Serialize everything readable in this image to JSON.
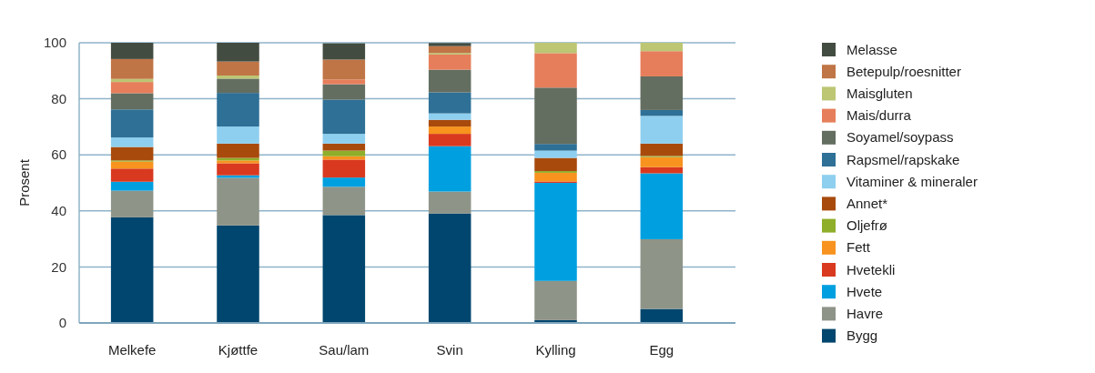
{
  "chart_data": {
    "type": "bar",
    "stacked": true,
    "ylabel": "Prosent",
    "categories": [
      "Melkefe",
      "Kjøttfe",
      "Sau/lam",
      "Svin",
      "Kylling",
      "Egg"
    ],
    "ylim": [
      0,
      100
    ],
    "yticks": [
      0,
      20,
      40,
      60,
      80,
      100
    ],
    "grid": "y",
    "legend": "right",
    "series": [
      {
        "name": "Bygg",
        "color": "#00466e",
        "values": [
          37.7,
          34.8,
          38.5,
          39.1,
          1.0,
          5.0
        ]
      },
      {
        "name": "Havre",
        "color": "#8e9488",
        "values": [
          9.5,
          17.0,
          10.1,
          7.8,
          14.0,
          24.9
        ]
      },
      {
        "name": "Hvete",
        "color": "#00a0e0",
        "values": [
          3.2,
          0.9,
          3.3,
          16.2,
          35.0,
          23.5
        ]
      },
      {
        "name": "Hvetekli",
        "color": "#d9391f",
        "values": [
          4.7,
          4.3,
          6.4,
          4.4,
          0.5,
          2.2
        ]
      },
      {
        "name": "Fett",
        "color": "#f7931e",
        "values": [
          2.5,
          1.0,
          1.2,
          2.6,
          3.1,
          3.6
        ]
      },
      {
        "name": "Oljefrø",
        "color": "#8fae2a",
        "values": [
          0.4,
          0.9,
          2.0,
          null,
          0.6,
          0.4
        ]
      },
      {
        "name": "Annet*",
        "color": "#a84a0c",
        "values": [
          4.8,
          5.1,
          2.5,
          2.4,
          4.7,
          4.4
        ]
      },
      {
        "name": "Vitaminer & mineraler",
        "color": "#8ecfef",
        "values": [
          3.4,
          6.1,
          3.5,
          2.3,
          2.6,
          9.9
        ]
      },
      {
        "name": "Rapsmel/rapskake",
        "color": "#2e7096",
        "values": [
          10.0,
          12.0,
          12.2,
          7.5,
          2.4,
          2.1
        ]
      },
      {
        "name": "Soyamel/soypass",
        "color": "#636e60",
        "values": [
          5.8,
          5.1,
          5.5,
          8.1,
          20.1,
          12.0
        ]
      },
      {
        "name": "Mais/durra",
        "color": "#e67e5b",
        "values": [
          4.0,
          0,
          1.7,
          5.4,
          12.3,
          9.0
        ]
      },
      {
        "name": "Maisgluten",
        "color": "#bcc673",
        "values": [
          1.1,
          1.1,
          null,
          0.5,
          3.7,
          3.0
        ]
      },
      {
        "name": "Betepulp/roesnitter",
        "color": "#c07546",
        "values": [
          7.1,
          5.0,
          7.1,
          2.5,
          0,
          0
        ]
      },
      {
        "name": "Melasse",
        "color": "#434c41",
        "values": [
          5.8,
          6.7,
          5.8,
          1.1,
          0,
          0
        ]
      }
    ]
  }
}
